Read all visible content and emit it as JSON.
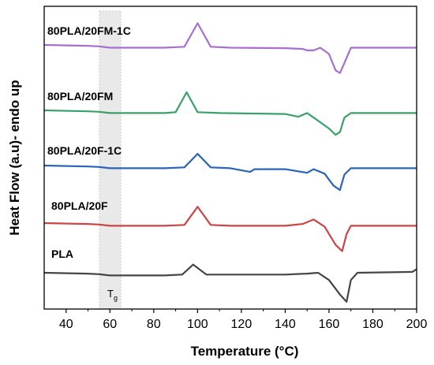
{
  "chart_data": {
    "type": "line",
    "title": "",
    "xlabel": "Temperature (°C)",
    "ylabel": "Heat Flow (a.u)- endo up",
    "xlim": [
      30,
      200
    ],
    "x_ticks": [
      40,
      60,
      80,
      100,
      120,
      140,
      160,
      180,
      200
    ],
    "y_ticks_shown": false,
    "grid": false,
    "legend": "none (series labeled above each curve)",
    "annotations": [
      {
        "text": "T",
        "subscript": "g",
        "x_range": [
          55,
          64
        ],
        "style": "shaded vertical band"
      }
    ],
    "series": [
      {
        "name": "80PLA/20FM-1C",
        "color": "#a66fd1",
        "points": [
          [
            30,
            0.0
          ],
          [
            50,
            0.05
          ],
          [
            55,
            0.08
          ],
          [
            60,
            0.15
          ],
          [
            70,
            0.15
          ],
          [
            85,
            0.15
          ],
          [
            94,
            0.1
          ],
          [
            100,
            -1.2
          ],
          [
            106,
            0.1
          ],
          [
            115,
            0.15
          ],
          [
            140,
            0.18
          ],
          [
            148,
            0.22
          ],
          [
            150,
            0.3
          ],
          [
            153,
            0.3
          ],
          [
            156,
            0.15
          ],
          [
            160,
            0.5
          ],
          [
            163,
            1.4
          ],
          [
            165,
            1.55
          ],
          [
            167,
            1.0
          ],
          [
            170,
            0.15
          ],
          [
            180,
            0.15
          ],
          [
            200,
            0.15
          ]
        ]
      },
      {
        "name": "80PLA/20FM",
        "color": "#3aa16a",
        "points": [
          [
            30,
            0.0
          ],
          [
            50,
            0.05
          ],
          [
            55,
            0.08
          ],
          [
            60,
            0.15
          ],
          [
            70,
            0.15
          ],
          [
            85,
            0.15
          ],
          [
            90,
            0.1
          ],
          [
            95,
            -1.0
          ],
          [
            100,
            0.1
          ],
          [
            110,
            0.15
          ],
          [
            140,
            0.2
          ],
          [
            146,
            0.35
          ],
          [
            150,
            0.15
          ],
          [
            153,
            0.4
          ],
          [
            160,
            1.0
          ],
          [
            163,
            1.35
          ],
          [
            165,
            1.2
          ],
          [
            167,
            0.4
          ],
          [
            170,
            0.15
          ],
          [
            200,
            0.15
          ]
        ]
      },
      {
        "name": "80PLA/20F-1C",
        "color": "#2a63b8",
        "points": [
          [
            30,
            0.0
          ],
          [
            50,
            0.05
          ],
          [
            55,
            0.08
          ],
          [
            60,
            0.15
          ],
          [
            70,
            0.15
          ],
          [
            85,
            0.15
          ],
          [
            94,
            0.1
          ],
          [
            100,
            -0.65
          ],
          [
            106,
            0.1
          ],
          [
            115,
            0.15
          ],
          [
            124,
            0.35
          ],
          [
            126,
            0.2
          ],
          [
            140,
            0.2
          ],
          [
            150,
            0.4
          ],
          [
            153,
            0.2
          ],
          [
            158,
            0.45
          ],
          [
            162,
            1.1
          ],
          [
            165,
            1.35
          ],
          [
            167,
            0.5
          ],
          [
            170,
            0.15
          ],
          [
            200,
            0.15
          ]
        ]
      },
      {
        "name": "80PLA/20F",
        "color": "#cc4545",
        "points": [
          [
            30,
            0.0
          ],
          [
            50,
            0.05
          ],
          [
            55,
            0.08
          ],
          [
            60,
            0.15
          ],
          [
            70,
            0.15
          ],
          [
            85,
            0.15
          ],
          [
            94,
            0.1
          ],
          [
            100,
            -0.9
          ],
          [
            106,
            0.1
          ],
          [
            115,
            0.15
          ],
          [
            140,
            0.15
          ],
          [
            148,
            0.05
          ],
          [
            153,
            -0.2
          ],
          [
            158,
            0.2
          ],
          [
            163,
            1.2
          ],
          [
            166,
            1.55
          ],
          [
            168,
            0.6
          ],
          [
            170,
            0.15
          ],
          [
            200,
            0.15
          ]
        ]
      },
      {
        "name": "PLA",
        "color": "#454545",
        "points": [
          [
            30,
            0.0
          ],
          [
            50,
            0.05
          ],
          [
            55,
            0.08
          ],
          [
            60,
            0.15
          ],
          [
            70,
            0.15
          ],
          [
            85,
            0.15
          ],
          [
            93,
            0.1
          ],
          [
            98,
            -0.45
          ],
          [
            104,
            0.1
          ],
          [
            115,
            0.1
          ],
          [
            140,
            0.1
          ],
          [
            150,
            0.05
          ],
          [
            155,
            0.0
          ],
          [
            160,
            0.4
          ],
          [
            165,
            1.2
          ],
          [
            168,
            1.6
          ],
          [
            170,
            0.4
          ],
          [
            173,
            0.0
          ],
          [
            198,
            -0.05
          ],
          [
            200,
            -0.2
          ]
        ]
      }
    ]
  }
}
